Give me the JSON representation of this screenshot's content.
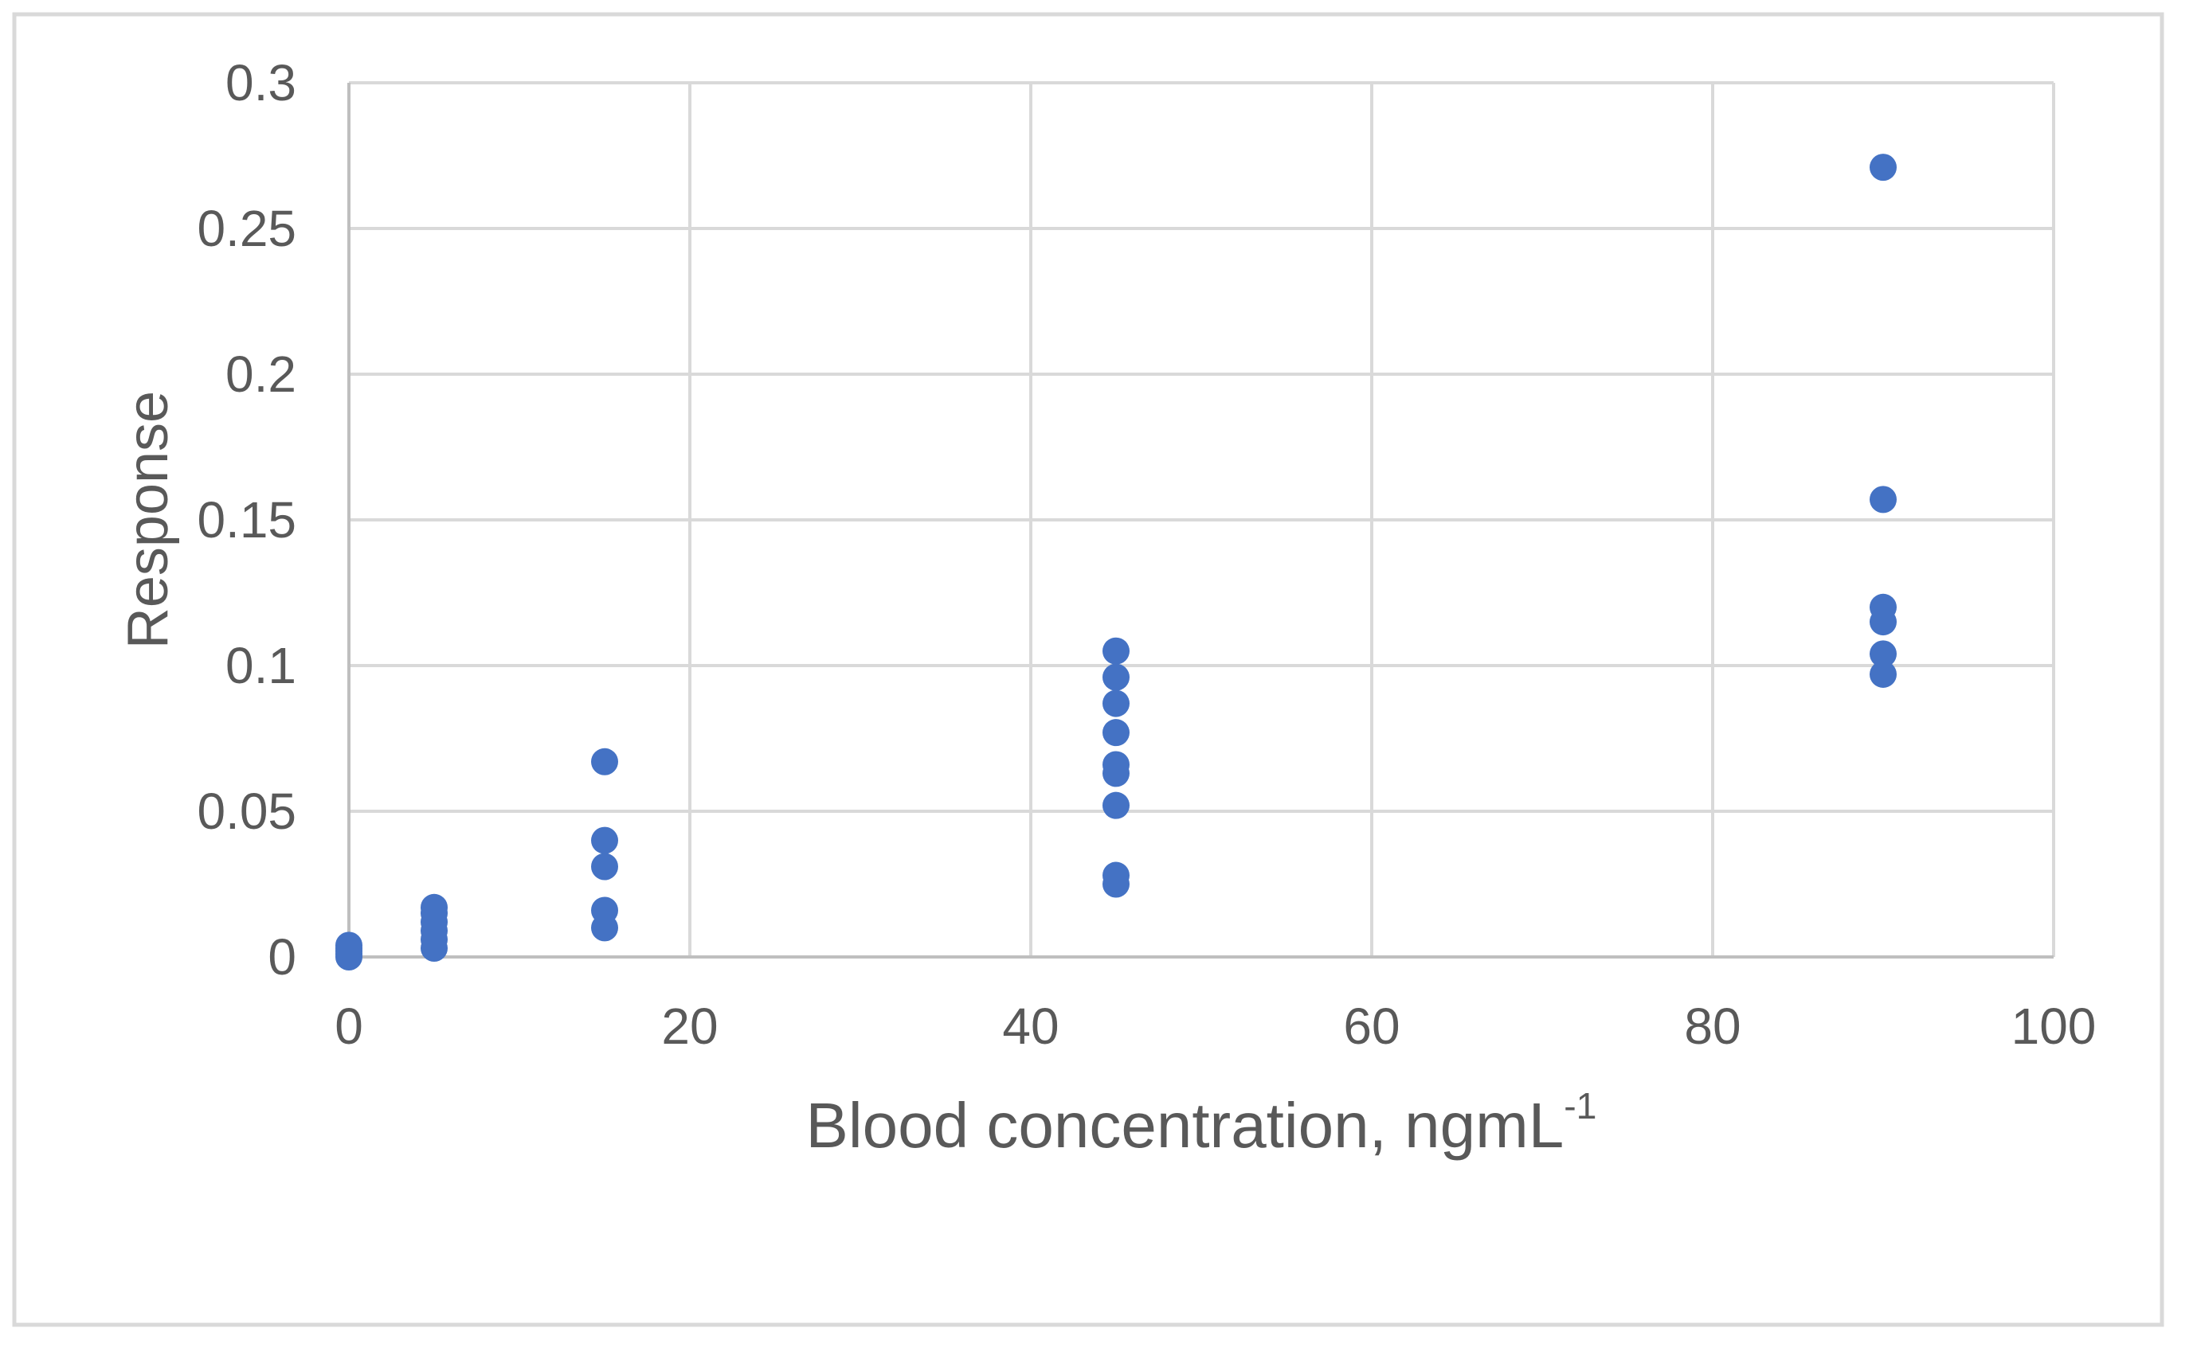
{
  "chart_data": {
    "type": "scatter",
    "title": "",
    "xlabel": "Blood concentration, ngmL⁻¹",
    "xlabel_base": "Blood concentration, ngmL",
    "xlabel_exponent": "-1",
    "ylabel": "Response",
    "xlim": [
      0,
      100
    ],
    "ylim": [
      0,
      0.3
    ],
    "x_ticks": [
      "0",
      "20",
      "40",
      "60",
      "80",
      "100"
    ],
    "y_ticks": [
      "0",
      "0.05",
      "0.1",
      "0.15",
      "0.2",
      "0.25",
      "0.3"
    ],
    "grid": true,
    "legend_position": "none",
    "series": [
      {
        "name": "Response",
        "marker": "circle",
        "color": "#4472C4",
        "points": [
          [
            0,
            0.0
          ],
          [
            0,
            0.001
          ],
          [
            0,
            0.002
          ],
          [
            0,
            0.003
          ],
          [
            0,
            0.004
          ],
          [
            5,
            0.003
          ],
          [
            5,
            0.006
          ],
          [
            5,
            0.009
          ],
          [
            5,
            0.012
          ],
          [
            5,
            0.015
          ],
          [
            5,
            0.017
          ],
          [
            15,
            0.01
          ],
          [
            15,
            0.016
          ],
          [
            15,
            0.031
          ],
          [
            15,
            0.04
          ],
          [
            15,
            0.067
          ],
          [
            45,
            0.025
          ],
          [
            45,
            0.028
          ],
          [
            45,
            0.052
          ],
          [
            45,
            0.063
          ],
          [
            45,
            0.066
          ],
          [
            45,
            0.077
          ],
          [
            45,
            0.087
          ],
          [
            45,
            0.096
          ],
          [
            45,
            0.105
          ],
          [
            90,
            0.097
          ],
          [
            90,
            0.104
          ],
          [
            90,
            0.115
          ],
          [
            90,
            0.12
          ],
          [
            90,
            0.157
          ],
          [
            90,
            0.271
          ]
        ]
      }
    ]
  },
  "style": {
    "marker_color": "#4472C4",
    "gridline_color": "#D9D9D9",
    "axis_color": "#BFBFBF",
    "text_color": "#595959",
    "border_color": "#D9D9D9",
    "background": "#FFFFFF"
  }
}
